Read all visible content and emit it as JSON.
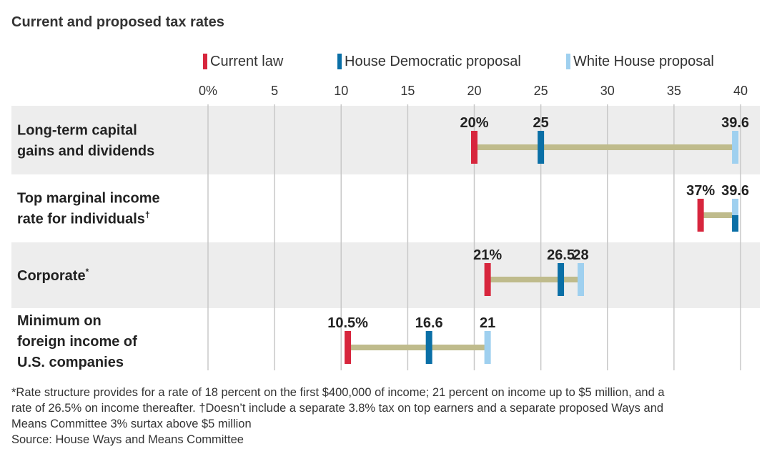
{
  "title": "Current and proposed tax rates",
  "legend": [
    {
      "label": "Current law",
      "color": "#d7263d"
    },
    {
      "label": "House Democratic proposal",
      "color": "#0a6fa6"
    },
    {
      "label": "White House proposal",
      "color": "#9fd0ef"
    }
  ],
  "chart_data": {
    "type": "range-dot",
    "title": "Current and proposed tax rates",
    "x_ticks": [
      "0%",
      "5",
      "10",
      "15",
      "20",
      "25",
      "30",
      "35",
      "40"
    ],
    "xlim": [
      0,
      40
    ],
    "series": [
      "Current law",
      "House Democratic proposal",
      "White House proposal"
    ],
    "rows": [
      {
        "label_lines": [
          "Long-term capital",
          "gains and dividends"
        ],
        "mark": "",
        "values": [
          20,
          25,
          39.6
        ],
        "value_labels": [
          "20%",
          "25",
          "39.6"
        ]
      },
      {
        "label_lines": [
          "Top marginal income",
          "rate for individuals"
        ],
        "mark": "†",
        "values": [
          37,
          39.6,
          39.6
        ],
        "value_labels": [
          "37%",
          "39.6",
          ""
        ]
      },
      {
        "label_lines": [
          "Corporate"
        ],
        "mark": "*",
        "values": [
          21,
          26.5,
          28
        ],
        "value_labels": [
          "21%",
          "26.5",
          "28"
        ]
      },
      {
        "label_lines": [
          "Minimum on",
          "foreign income of",
          "U.S. companies"
        ],
        "mark": "",
        "values": [
          10.5,
          16.6,
          21
        ],
        "value_labels": [
          "10.5%",
          "16.6",
          "21"
        ]
      }
    ],
    "range_color": "#bfbb8c",
    "band_color": "#ededed"
  },
  "footnotes": {
    "line1": "*Rate structure provides for a rate of 18 percent on the first $400,000 of income; 21 percent on income up to $5 million, and a",
    "line2": "rate of 26.5% on income thereafter.  †Doesn’t include a separate 3.8% tax on top earners and a separate proposed Ways and",
    "line3": "Means Committee 3% surtax above $5 million",
    "source": "Source: House Ways and Means Committee"
  }
}
